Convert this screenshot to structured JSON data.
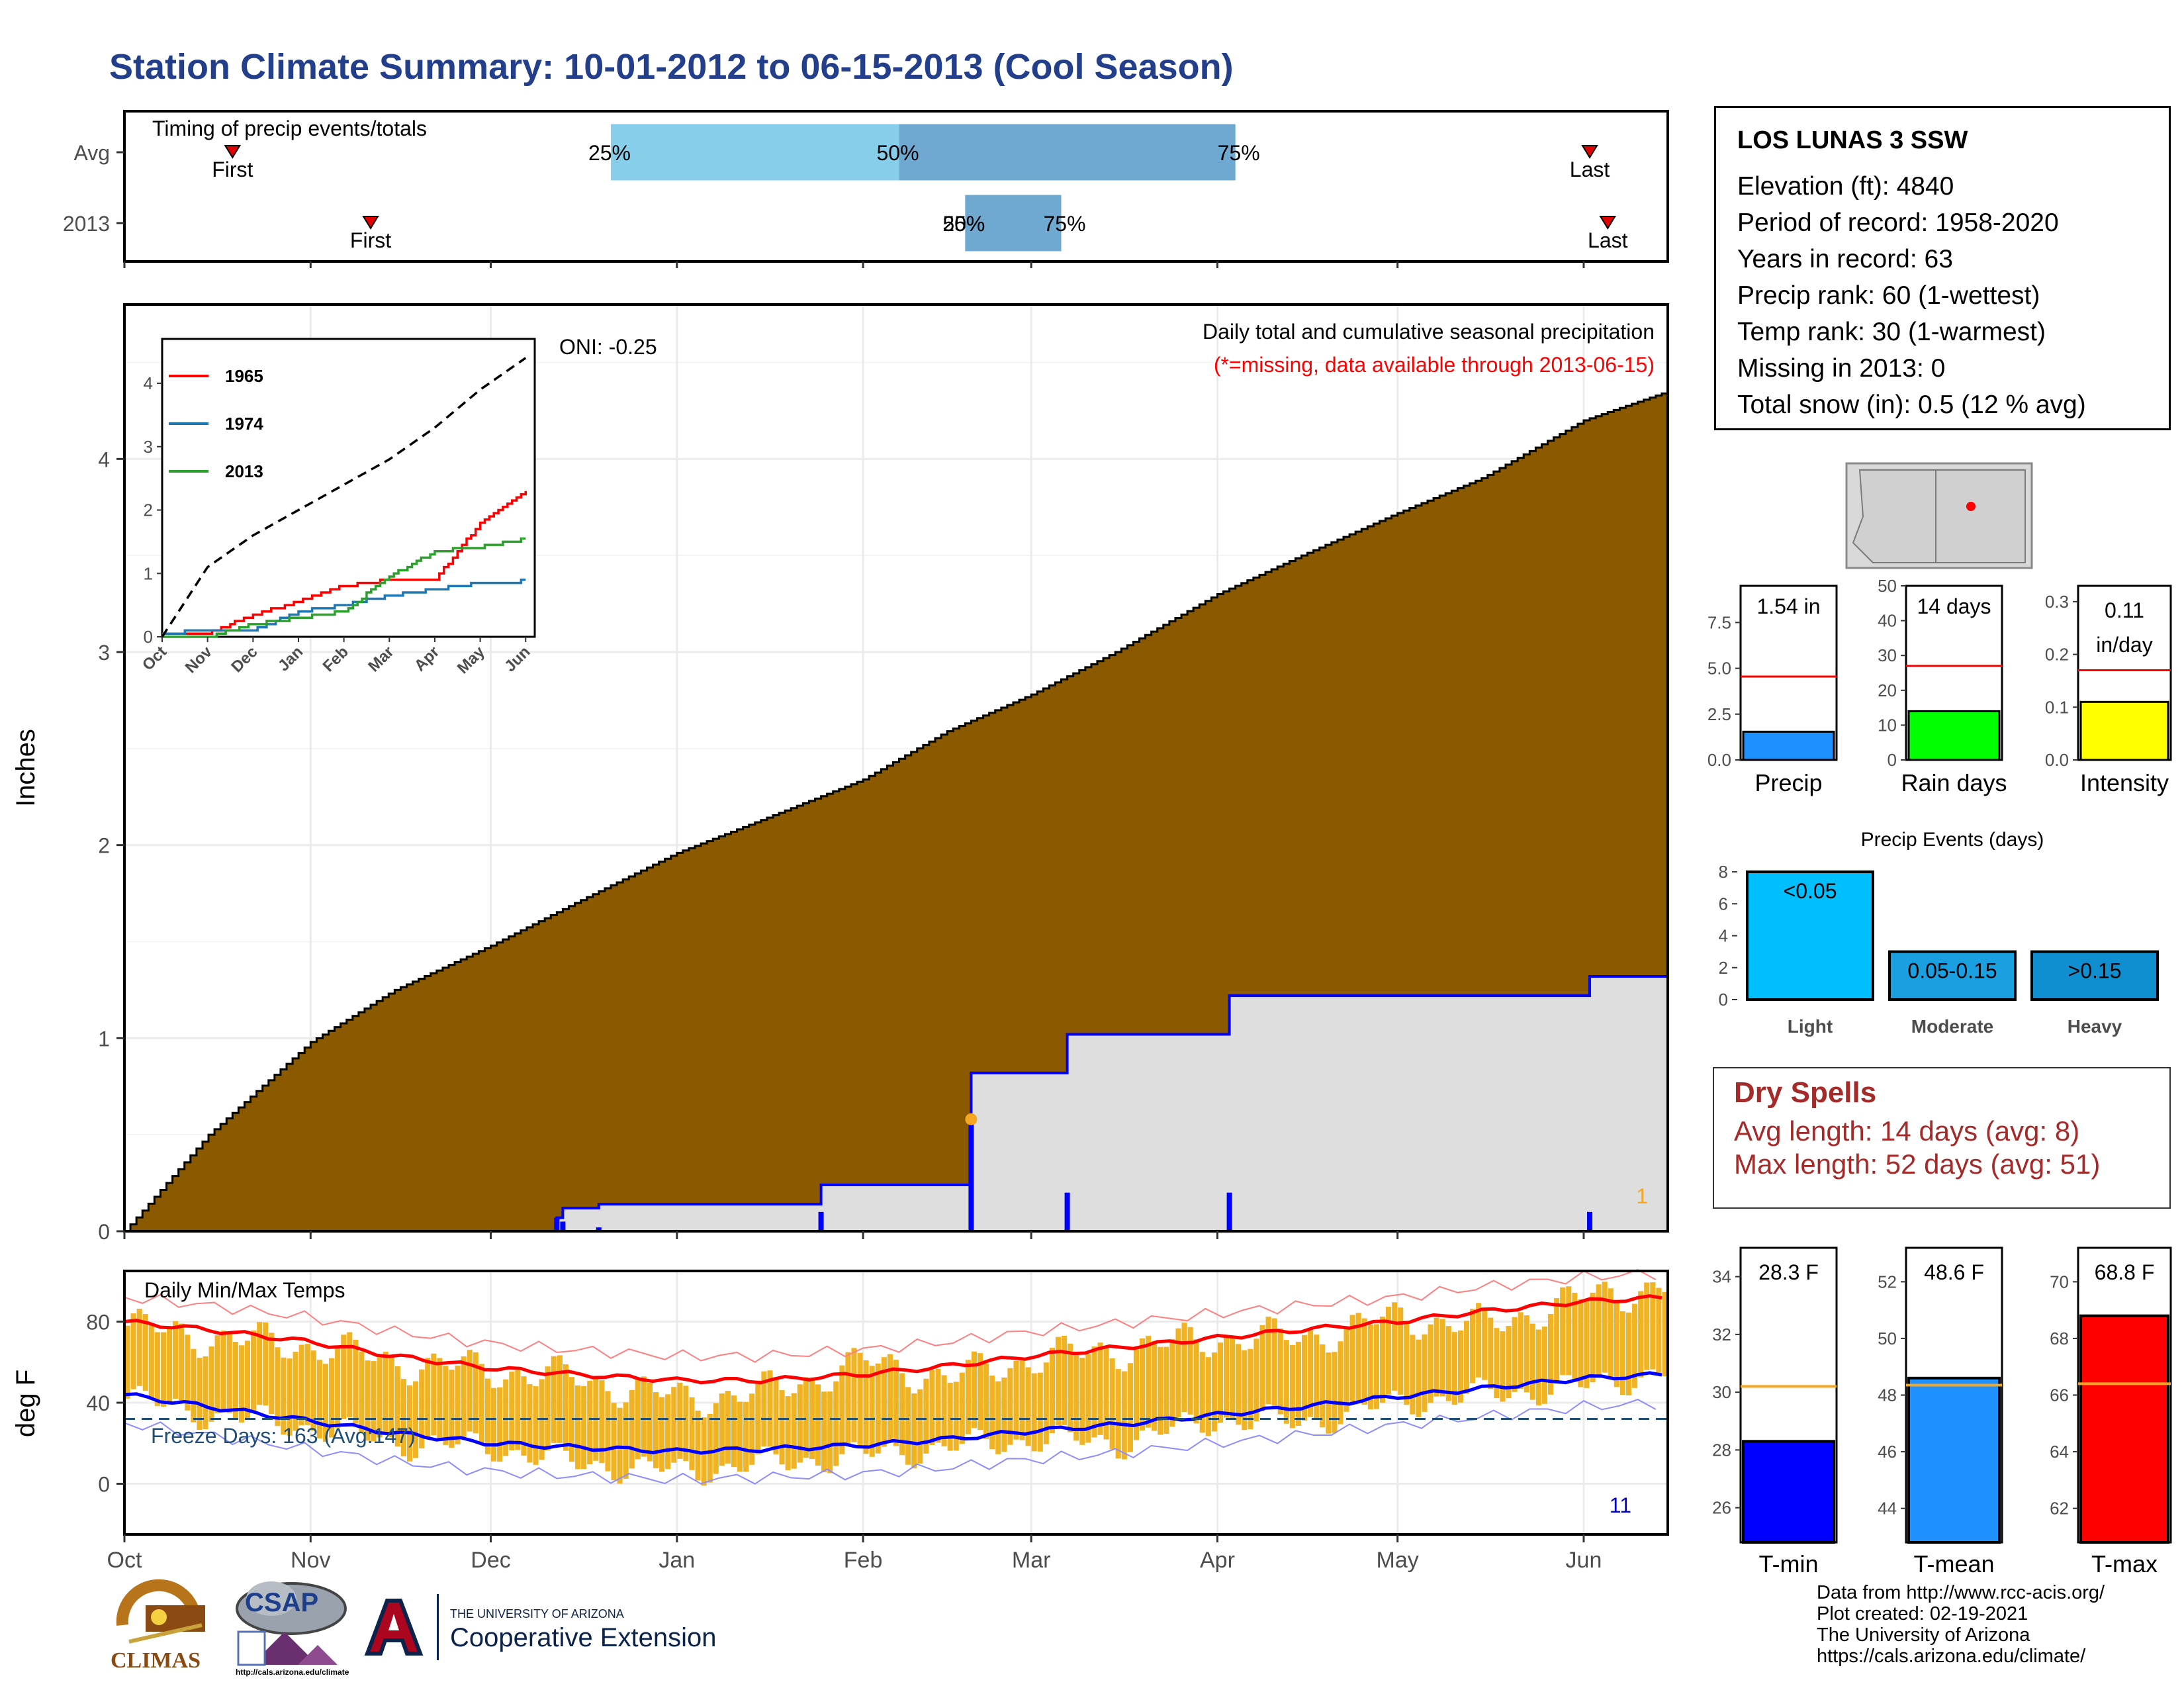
{
  "title": "Station Climate Summary: 10-01-2012 to 06-15-2013 (Cool Season)",
  "timing": {
    "label": "Timing of precip events/totals",
    "rows": [
      {
        "name": "Avg",
        "first_label": "First",
        "last_label": "Last",
        "p25": "25%",
        "p50": "50%",
        "p75": "75%"
      },
      {
        "name": "2013",
        "first_label": "First",
        "last_label": "Last",
        "p25": "25%",
        "p50": "50%",
        "p75": "75%"
      }
    ]
  },
  "station": {
    "name": "LOS LUNAS 3 SSW",
    "elevation": "Elevation (ft): 4840",
    "period": "Period of record: 1958-2020",
    "years": "Years in record: 63",
    "precip_rank": "Precip rank: 60 (1-wettest)",
    "temp_rank": "Temp rank: 30 (1-warmest)",
    "missing": "Missing in 2013: 0",
    "snow": "Total snow (in): 0.5 (12 % avg)"
  },
  "precip_panel": {
    "title": "Daily total and cumulative seasonal precipitation",
    "subtitle": "(*=missing, data available through 2013-06-15)",
    "oni": "ONI: -0.25",
    "ylabel": "Inches",
    "missing_count": "1"
  },
  "temp_panel": {
    "title": "Daily Min/Max Temps",
    "freeze": "Freeze Days: 163 (Avg:147)",
    "ylabel": "deg F",
    "count": "11"
  },
  "month_labels": [
    "Oct",
    "Nov",
    "Dec",
    "Jan",
    "Feb",
    "Mar",
    "Apr",
    "May",
    "Jun"
  ],
  "inset": {
    "legend": [
      "1965",
      "1974",
      "2013"
    ],
    "months": [
      "Oct",
      "Nov",
      "Dec",
      "Jan",
      "Feb",
      "Mar",
      "Apr",
      "May",
      "Jun"
    ]
  },
  "small_bars": [
    {
      "label": "Precip",
      "value_text": "1.54 in"
    },
    {
      "label": "Rain days",
      "value_text": "14 days"
    },
    {
      "label": "Intensity",
      "value_text": "0.11",
      "value_text2": "in/day"
    }
  ],
  "events": {
    "title": "Precip Events (days)",
    "categories": [
      "Light",
      "Moderate",
      "Heavy"
    ],
    "labels": [
      "<0.05",
      "0.05-0.15",
      ">0.15"
    ]
  },
  "dry_spells": {
    "title": "Dry Spells",
    "avg": "Avg length: 14 days (avg: 8)",
    "max": "Max length: 52 days (avg: 51)"
  },
  "temp_bars": [
    {
      "label": "T-min",
      "value_text": "28.3 F"
    },
    {
      "label": "T-mean",
      "value_text": "48.6 F"
    },
    {
      "label": "T-max",
      "value_text": "68.8 F"
    }
  ],
  "footer": {
    "line1": "Data from http://www.rcc-acis.org/",
    "line2": "Plot created: 02-19-2021",
    "line3": "The University of Arizona",
    "line4": "https://cals.arizona.edu/climate/"
  },
  "logos": {
    "climas": "CLIMAS",
    "csap": "CSAP",
    "csap_url": "http://cals.arizona.edu/climate",
    "ua_small": "THE UNIVERSITY OF ARIZONA",
    "ua_big": "Cooperative Extension"
  },
  "colors": {
    "title": "#233e8b",
    "cumulative_avg": "#8b5a00",
    "cumulative_2013": "#0000ff",
    "tmax": "#ff0000",
    "tmin": "#0000ff",
    "temp_bars": "#f0b323",
    "precip_bar": "#1e90ff",
    "raindays_bar": "#00ff00",
    "intensity_bar": "#ffff00",
    "events_light": "#00bfff",
    "events_mod": "#1aa0e0",
    "events_heavy": "#0f8fcf"
  },
  "chart_data": [
    {
      "type": "bar",
      "title": "Timing of precip events/totals",
      "categories": [
        "Avg",
        "2013"
      ],
      "series": [
        {
          "name": "First",
          "values": [
            "2012-10-19",
            "2012-11-11"
          ]
        },
        {
          "name": "25%",
          "values": [
            "2012-12-21",
            "2013-02-18"
          ]
        },
        {
          "name": "50%",
          "values": [
            "2013-02-07",
            "2013-02-18"
          ]
        },
        {
          "name": "75%",
          "values": [
            "2013-04-04",
            "2013-03-06"
          ]
        },
        {
          "name": "Last",
          "values": [
            "2013-06-02",
            "2013-06-05"
          ]
        }
      ],
      "xlim": [
        "2012-10-01",
        "2013-06-15"
      ]
    },
    {
      "type": "area",
      "title": "Daily total and cumulative seasonal precipitation",
      "ylabel": "Inches",
      "ylim": [
        0,
        4.8
      ],
      "xlim": [
        "2012-10-01",
        "2013-06-15"
      ],
      "x": [
        "2012-10-01",
        "2012-10-15",
        "2012-11-01",
        "2012-11-15",
        "2012-12-01",
        "2012-12-15",
        "2013-01-01",
        "2013-01-15",
        "2013-02-01",
        "2013-02-15",
        "2013-03-01",
        "2013-03-15",
        "2013-04-01",
        "2013-04-15",
        "2013-05-01",
        "2013-05-15",
        "2013-06-01",
        "2013-06-15"
      ],
      "series": [
        {
          "name": "Average cumulative",
          "values": [
            0.0,
            0.5,
            0.98,
            1.25,
            1.48,
            1.7,
            1.96,
            2.13,
            2.34,
            2.59,
            2.78,
            3.0,
            3.3,
            3.5,
            3.72,
            3.9,
            4.2,
            4.35
          ]
        },
        {
          "name": "2013 cumulative",
          "values": [
            0.0,
            0.0,
            0.0,
            0.0,
            0.02,
            0.25,
            0.25,
            0.25,
            0.35,
            0.35,
            0.95,
            1.18,
            1.18,
            1.42,
            1.42,
            1.42,
            1.42,
            1.54
          ]
        }
      ],
      "daily_events": [
        {
          "x": "2012-12-12",
          "value": 0.07
        },
        {
          "x": "2012-12-13",
          "value": 0.05
        },
        {
          "x": "2012-12-19",
          "value": 0.02
        },
        {
          "x": "2013-01-25",
          "value": 0.1
        },
        {
          "x": "2013-02-19",
          "value": 0.58
        },
        {
          "x": "2013-03-07",
          "value": 0.2
        },
        {
          "x": "2013-04-03",
          "value": 0.2
        },
        {
          "x": "2013-06-02",
          "value": 0.1
        }
      ]
    },
    {
      "type": "line",
      "title": "Inset cumulative precipitation",
      "ylim": [
        0,
        4.7
      ],
      "x": [
        "Oct",
        "Nov",
        "Dec",
        "Jan",
        "Feb",
        "Mar",
        "Apr",
        "May",
        "Jun"
      ],
      "series": [
        {
          "name": "1965",
          "values": [
            0.05,
            0.05,
            0.35,
            0.55,
            0.8,
            0.9,
            0.9,
            1.8,
            2.3
          ]
        },
        {
          "name": "1974",
          "values": [
            0.05,
            0.1,
            0.1,
            0.4,
            0.5,
            0.65,
            0.75,
            0.85,
            0.88
          ]
        },
        {
          "name": "2013",
          "values": [
            0.0,
            0.0,
            0.2,
            0.3,
            0.4,
            0.95,
            1.35,
            1.42,
            1.54
          ]
        },
        {
          "name": "Average",
          "values": [
            0.0,
            1.1,
            1.6,
            2.0,
            2.4,
            2.8,
            3.3,
            3.9,
            4.4
          ]
        }
      ]
    },
    {
      "type": "line",
      "title": "Daily Min/Max Temps",
      "ylabel": "deg F",
      "ylim": [
        -25,
        105
      ],
      "xlim": [
        "2012-10-01",
        "2013-06-15"
      ],
      "freeze_line": 32,
      "x": [
        "2012-10-01",
        "2012-10-15",
        "2012-11-01",
        "2012-11-15",
        "2012-12-01",
        "2012-12-15",
        "2013-01-01",
        "2013-01-15",
        "2013-02-01",
        "2013-02-15",
        "2013-03-01",
        "2013-03-15",
        "2013-04-01",
        "2013-04-15",
        "2013-05-01",
        "2013-05-15",
        "2013-06-01",
        "2013-06-15"
      ],
      "series": [
        {
          "name": "Avg max",
          "values": [
            80,
            76,
            70,
            63,
            57,
            54,
            51,
            51,
            54,
            58,
            63,
            67,
            72,
            76,
            80,
            85,
            90,
            92
          ]
        },
        {
          "name": "Avg min",
          "values": [
            44,
            38,
            31,
            25,
            20,
            18,
            16,
            17,
            19,
            22,
            26,
            29,
            34,
            38,
            43,
            47,
            52,
            54
          ]
        },
        {
          "name": "2013 max",
          "values": [
            78,
            72,
            68,
            60,
            56,
            52,
            42,
            45,
            60,
            52,
            62,
            66,
            72,
            72,
            82,
            78,
            92,
            98
          ]
        },
        {
          "name": "2013 min",
          "values": [
            42,
            34,
            28,
            20,
            18,
            10,
            6,
            10,
            14,
            18,
            22,
            20,
            32,
            30,
            40,
            44,
            48,
            56
          ]
        }
      ]
    },
    {
      "type": "bar",
      "title": "Precip",
      "categories": [
        "Precip"
      ],
      "values": [
        1.54
      ],
      "reference": 4.55,
      "ylim": [
        0,
        9.5
      ]
    },
    {
      "type": "bar",
      "title": "Rain days",
      "categories": [
        "Rain days"
      ],
      "values": [
        14
      ],
      "reference": 27,
      "ylim": [
        0,
        50
      ]
    },
    {
      "type": "bar",
      "title": "Intensity",
      "categories": [
        "Intensity"
      ],
      "values": [
        0.11
      ],
      "reference": 0.17,
      "ylim": [
        0,
        0.33
      ]
    },
    {
      "type": "bar",
      "title": "Precip Events (days)",
      "categories": [
        "Light",
        "Moderate",
        "Heavy"
      ],
      "values": [
        8,
        3,
        3
      ],
      "ylim": [
        0,
        8.5
      ]
    },
    {
      "type": "bar",
      "title": "T-min",
      "categories": [
        "T-min"
      ],
      "values": [
        28.3
      ],
      "reference": 30.2,
      "ylim": [
        24.8,
        35
      ]
    },
    {
      "type": "bar",
      "title": "T-mean",
      "categories": [
        "T-mean"
      ],
      "values": [
        48.6
      ],
      "reference": 48.35,
      "ylim": [
        42.8,
        53.2
      ]
    },
    {
      "type": "bar",
      "title": "T-max",
      "categories": [
        "T-max"
      ],
      "values": [
        68.8
      ],
      "reference": 66.4,
      "ylim": [
        60.8,
        71.2
      ]
    }
  ]
}
